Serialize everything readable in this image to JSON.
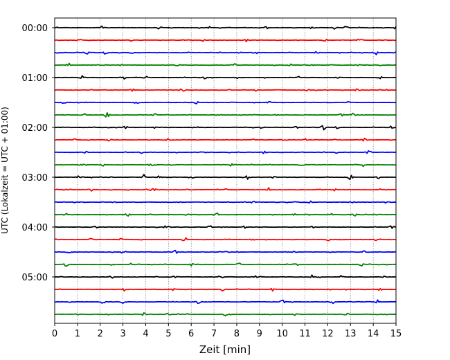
{
  "chart_data": {
    "type": "line",
    "xlabel": "Zeit  [min]",
    "ylabel": "UTC (Lokalzeit = UTC + 01:00)",
    "xlim": [
      0,
      15
    ],
    "xticks": [
      0,
      1,
      2,
      3,
      4,
      5,
      6,
      7,
      8,
      9,
      10,
      11,
      12,
      13,
      14,
      15
    ],
    "x_grid": "dotted vertical lines at each minute",
    "traces_per_hour": 4,
    "trace_interval_min": 15,
    "trace_colors": [
      "#000000",
      "#ff0000",
      "#0000ff",
      "#008000"
    ],
    "hour_labels": [
      "00:00",
      "01:00",
      "02:00",
      "03:00",
      "04:00",
      "05:00"
    ],
    "trace_count": 24,
    "series": [
      {
        "label": "00:00",
        "color": "#000000",
        "events": [
          [
            2.1,
            0.6
          ],
          [
            4.6,
            0.5
          ],
          [
            6.8,
            0.5
          ],
          [
            9.3,
            0.4
          ],
          [
            11.3,
            0.5
          ],
          [
            12.3,
            0.7
          ],
          [
            12.8,
            0.9
          ],
          [
            15.0,
            0.6
          ]
        ]
      },
      {
        "label": "00:15",
        "color": "#ff0000",
        "events": [
          [
            1.1,
            0.4
          ],
          [
            3.3,
            0.5
          ],
          [
            6.5,
            0.4
          ],
          [
            8.4,
            0.5
          ],
          [
            11.9,
            0.4
          ],
          [
            13.4,
            0.5
          ]
        ]
      },
      {
        "label": "00:30",
        "color": "#0000ff",
        "events": [
          [
            1.4,
            0.5
          ],
          [
            2.2,
            0.6
          ],
          [
            3.4,
            0.4
          ],
          [
            7.3,
            0.5
          ],
          [
            8.9,
            0.4
          ],
          [
            11.5,
            0.5
          ],
          [
            14.1,
            0.8
          ],
          [
            15.0,
            0.6
          ]
        ]
      },
      {
        "label": "00:45",
        "color": "#008000",
        "events": [
          [
            0.6,
            0.8
          ],
          [
            2.9,
            0.4
          ],
          [
            5.4,
            0.5
          ],
          [
            7.9,
            0.6
          ],
          [
            10.3,
            0.4
          ],
          [
            11.3,
            0.5
          ],
          [
            13.3,
            0.4
          ]
        ]
      },
      {
        "label": "01:00",
        "color": "#000000",
        "events": [
          [
            1.2,
            0.8
          ],
          [
            3.0,
            0.7
          ],
          [
            4.0,
            0.4
          ],
          [
            6.6,
            0.6
          ],
          [
            8.0,
            0.4
          ],
          [
            10.7,
            0.5
          ],
          [
            12.4,
            0.4
          ],
          [
            14.3,
            0.5
          ]
        ]
      },
      {
        "label": "01:15",
        "color": "#ff0000",
        "events": [
          [
            3.4,
            0.4
          ],
          [
            5.6,
            0.5
          ],
          [
            8.8,
            0.4
          ],
          [
            11.1,
            0.4
          ],
          [
            13.3,
            0.5
          ],
          [
            14.6,
            0.4
          ]
        ]
      },
      {
        "label": "01:30",
        "color": "#0000ff",
        "events": [
          [
            0.4,
            0.4
          ],
          [
            3.6,
            0.4
          ],
          [
            6.2,
            0.5
          ],
          [
            9.4,
            0.4
          ],
          [
            12.9,
            0.4
          ]
        ]
      },
      {
        "label": "01:45",
        "color": "#008000",
        "events": [
          [
            1.3,
            0.5
          ],
          [
            2.3,
            0.9
          ],
          [
            4.4,
            0.4
          ],
          [
            7.2,
            0.5
          ],
          [
            9.8,
            0.4
          ],
          [
            12.6,
            0.6
          ],
          [
            13.1,
            0.9
          ]
        ]
      },
      {
        "label": "02:00",
        "color": "#000000",
        "events": [
          [
            3.1,
            0.6
          ],
          [
            4.4,
            0.5
          ],
          [
            6.2,
            0.5
          ],
          [
            9.1,
            0.8
          ],
          [
            10.6,
            0.4
          ],
          [
            11.8,
            0.9
          ],
          [
            12.4,
            0.5
          ],
          [
            14.8,
            0.7
          ]
        ]
      },
      {
        "label": "02:15",
        "color": "#ff0000",
        "events": [
          [
            0.9,
            0.4
          ],
          [
            2.4,
            0.5
          ],
          [
            5.0,
            0.4
          ],
          [
            8.8,
            0.6
          ],
          [
            11.0,
            0.4
          ],
          [
            13.6,
            0.5
          ]
        ]
      },
      {
        "label": "02:30",
        "color": "#0000ff",
        "events": [
          [
            1.3,
            1.2
          ],
          [
            3.8,
            0.4
          ],
          [
            6.6,
            0.4
          ],
          [
            9.2,
            0.5
          ],
          [
            12.4,
            0.4
          ],
          [
            13.8,
            0.6
          ]
        ]
      },
      {
        "label": "02:45",
        "color": "#008000",
        "events": [
          [
            1.2,
            0.5
          ],
          [
            2.1,
            0.6
          ],
          [
            4.2,
            0.5
          ],
          [
            7.8,
            0.7
          ],
          [
            10.9,
            0.4
          ],
          [
            13.6,
            1.0
          ]
        ]
      },
      {
        "label": "03:00",
        "color": "#000000",
        "events": [
          [
            1.1,
            0.7
          ],
          [
            3.9,
            1.0
          ],
          [
            4.6,
            0.6
          ],
          [
            6.0,
            0.5
          ],
          [
            8.5,
            0.8
          ],
          [
            9.6,
            0.4
          ],
          [
            13.0,
            0.9
          ],
          [
            14.2,
            0.5
          ]
        ]
      },
      {
        "label": "03:15",
        "color": "#ff0000",
        "events": [
          [
            1.6,
            0.5
          ],
          [
            4.3,
            0.6
          ],
          [
            7.5,
            0.5
          ],
          [
            9.4,
            0.7
          ],
          [
            12.3,
            0.6
          ],
          [
            14.4,
            0.4
          ]
        ]
      },
      {
        "label": "03:30",
        "color": "#0000ff",
        "events": [
          [
            2.6,
            0.4
          ],
          [
            5.6,
            0.4
          ],
          [
            8.7,
            0.4
          ],
          [
            11.2,
            0.5
          ],
          [
            13.1,
            0.8
          ],
          [
            14.6,
            0.4
          ]
        ]
      },
      {
        "label": "03:45",
        "color": "#008000",
        "events": [
          [
            0.5,
            0.4
          ],
          [
            3.2,
            0.6
          ],
          [
            5.8,
            0.5
          ],
          [
            7.1,
            0.7
          ],
          [
            10.5,
            0.4
          ],
          [
            12.1,
            0.6
          ],
          [
            13.2,
            0.6
          ]
        ]
      },
      {
        "label": "04:00",
        "color": "#000000",
        "events": [
          [
            1.8,
            0.4
          ],
          [
            4.9,
            0.7
          ],
          [
            6.8,
            0.5
          ],
          [
            8.3,
            0.6
          ],
          [
            11.3,
            0.5
          ],
          [
            14.8,
            0.5
          ]
        ]
      },
      {
        "label": "04:15",
        "color": "#ff0000",
        "events": [
          [
            1.6,
            0.4
          ],
          [
            2.9,
            0.4
          ],
          [
            5.7,
            0.8
          ],
          [
            8.7,
            0.4
          ],
          [
            12.0,
            0.5
          ],
          [
            14.1,
            0.4
          ]
        ]
      },
      {
        "label": "04:30",
        "color": "#0000ff",
        "events": [
          [
            0.6,
            0.5
          ],
          [
            3.0,
            0.4
          ],
          [
            5.3,
            0.6
          ],
          [
            7.6,
            0.4
          ],
          [
            10.5,
            0.5
          ],
          [
            13.6,
            0.4
          ]
        ]
      },
      {
        "label": "04:45",
        "color": "#008000",
        "events": [
          [
            0.5,
            0.6
          ],
          [
            3.4,
            0.5
          ],
          [
            6.0,
            0.4
          ],
          [
            8.1,
            0.5
          ],
          [
            10.6,
            0.4
          ],
          [
            13.5,
            0.6
          ]
        ]
      },
      {
        "label": "05:00",
        "color": "#000000",
        "events": [
          [
            2.5,
            0.5
          ],
          [
            5.3,
            0.6
          ],
          [
            7.3,
            0.7
          ],
          [
            8.8,
            0.5
          ],
          [
            11.3,
            0.5
          ],
          [
            12.6,
            0.5
          ],
          [
            14.5,
            0.4
          ]
        ]
      },
      {
        "label": "05:15",
        "color": "#ff0000",
        "events": [
          [
            3.1,
            0.7
          ],
          [
            5.2,
            0.4
          ],
          [
            7.4,
            0.5
          ],
          [
            9.6,
            0.6
          ],
          [
            12.2,
            0.4
          ],
          [
            14.3,
            0.5
          ]
        ]
      },
      {
        "label": "05:30",
        "color": "#0000ff",
        "events": [
          [
            2.1,
            0.5
          ],
          [
            3.0,
            0.9
          ],
          [
            6.3,
            0.5
          ],
          [
            10.0,
            0.8
          ],
          [
            12.2,
            0.4
          ],
          [
            14.2,
            0.7
          ]
        ]
      },
      {
        "label": "05:45",
        "color": "#008000",
        "events": [
          [
            1.0,
            0.4
          ],
          [
            3.9,
            0.5
          ],
          [
            5.0,
            0.5
          ],
          [
            7.5,
            0.5
          ],
          [
            10.6,
            0.4
          ],
          [
            12.9,
            0.4
          ]
        ]
      }
    ]
  }
}
